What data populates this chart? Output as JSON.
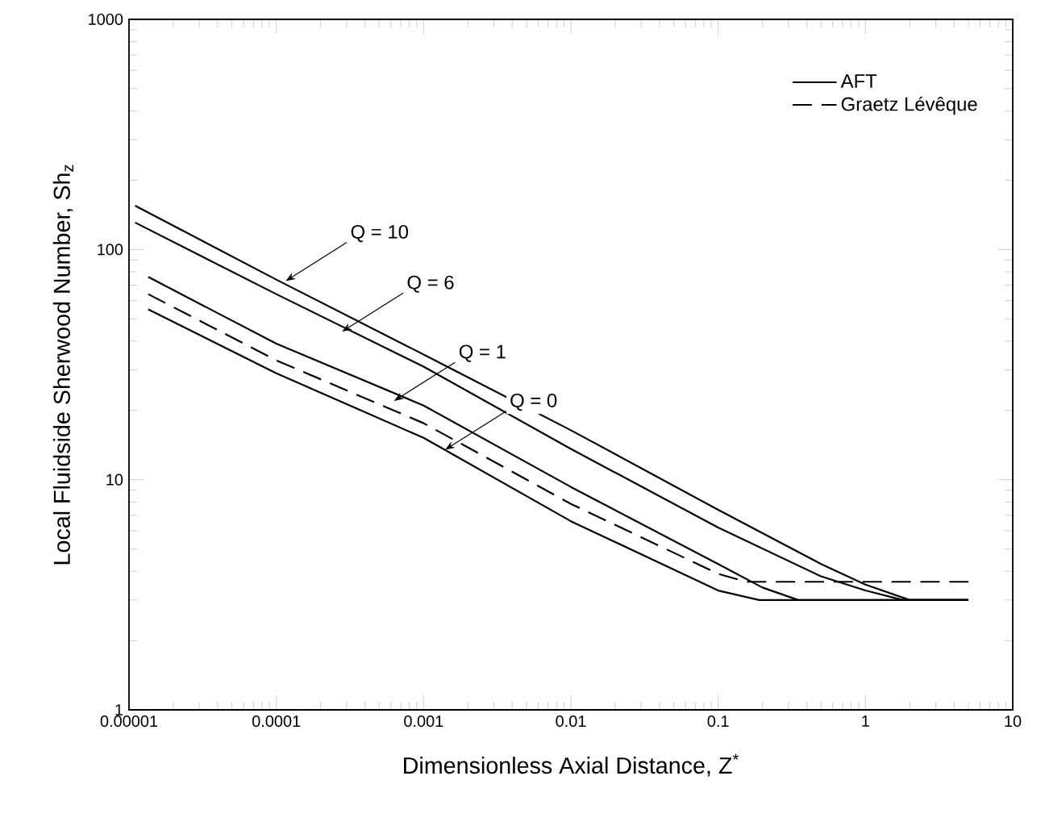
{
  "chart_data": {
    "type": "line",
    "xlabel": "Dimensionless Axial Distance, Z$^{*}$",
    "ylabel": "Local Fluidside Sherwood Number, Sh$_{z}$",
    "log": "xy",
    "xlim": [
      1e-05,
      10
    ],
    "ylim": [
      1,
      1000
    ],
    "xticks": [
      {
        "value": 1e-05,
        "label": "0.00001"
      },
      {
        "value": 0.0001,
        "label": "0.0001"
      },
      {
        "value": 0.001,
        "label": "0.001"
      },
      {
        "value": 0.01,
        "label": "0.01"
      },
      {
        "value": 0.1,
        "label": "0.1"
      },
      1,
      10
    ],
    "yticks": [
      1,
      10,
      100,
      1000
    ],
    "legend": "top right",
    "marker": "none",
    "grid": false,
    "series": [
      {
        "name": "AFT",
        "color": "#000000",
        "line_style": "solid",
        "x": [
          1.1e-05,
          0.0001,
          0.001,
          0.01,
          0.1,
          0.5,
          1,
          2,
          5
        ],
        "values": [
          155,
          74,
          35,
          16.4,
          7.4,
          4.3,
          3.5,
          3.0,
          3.0
        ]
      },
      {
        "color": "#000000",
        "line_style": "solid",
        "x": [
          1.1e-05,
          0.0001,
          0.001,
          0.01,
          0.1,
          0.5,
          1,
          1.8,
          5
        ],
        "values": [
          131,
          64,
          31,
          13.6,
          6.2,
          3.8,
          3.3,
          3.0,
          3.0
        ]
      },
      {
        "color": "#000000",
        "line_style": "solid",
        "x": [
          1.35e-05,
          0.0001,
          0.001,
          0.01,
          0.1,
          0.2,
          0.35,
          5
        ],
        "values": [
          76,
          39,
          21,
          9.3,
          4.3,
          3.4,
          3.0,
          3.0
        ]
      },
      {
        "name": "Graetz Lévêque",
        "color": "#000000",
        "line_style": "dashed",
        "x": [
          1.35e-05,
          0.0001,
          0.001,
          0.01,
          0.1,
          0.155,
          5
        ],
        "values": [
          64,
          33,
          17.6,
          7.85,
          3.9,
          3.6,
          3.6
        ]
      },
      {
        "color": "#000000",
        "line_style": "solid",
        "x": [
          1.35e-05,
          0.0001,
          0.001,
          0.01,
          0.1,
          0.19,
          5
        ],
        "values": [
          55,
          29,
          15.2,
          6.6,
          3.3,
          3.0,
          3.0
        ]
      }
    ],
    "annotations": [
      {
        "text": "Q = 10",
        "x": 0.000116,
        "y": 73
      },
      {
        "text": "Q = 6",
        "x": 0.00028,
        "y": 44
      },
      {
        "text": "Q = 1",
        "x": 0.00063,
        "y": 22
      },
      {
        "text": "Q = 0",
        "x": 0.0014,
        "y": 13.5
      }
    ]
  }
}
